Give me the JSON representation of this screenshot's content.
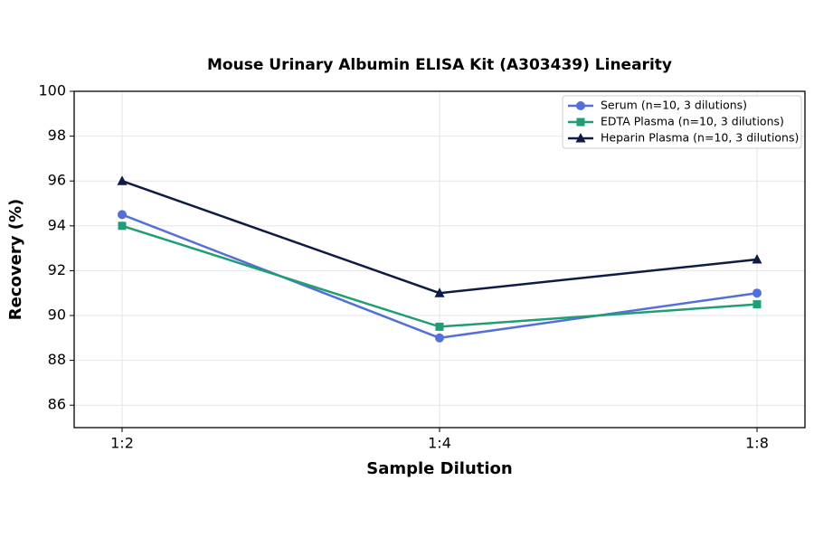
{
  "chart_data": {
    "type": "line",
    "title": "Mouse Urinary Albumin ELISA Kit (A303439) Linearity",
    "x_label": "Sample Dilution",
    "y_label": "Recovery (%)",
    "categories": [
      "1:2",
      "1:4",
      "1:8"
    ],
    "series": [
      {
        "name": "Serum (n=10, 3 dilutions)",
        "color": "#5470d6",
        "marker": "circle",
        "values": [
          94.5,
          89,
          91
        ]
      },
      {
        "name": "EDTA Plasma (n=10, 3 dilutions)",
        "color": "#1f9e75",
        "marker": "square",
        "values": [
          94,
          89.5,
          90.5
        ]
      },
      {
        "name": "Heparin Plasma (n=10, 3 dilutions)",
        "color": "#0d1b45",
        "marker": "triangle",
        "values": [
          96,
          91,
          92.5
        ]
      }
    ],
    "ylim": [
      85,
      100
    ],
    "yticks": [
      86,
      88,
      90,
      92,
      94,
      96,
      98,
      100
    ],
    "grid": true,
    "legend": "upper right"
  }
}
